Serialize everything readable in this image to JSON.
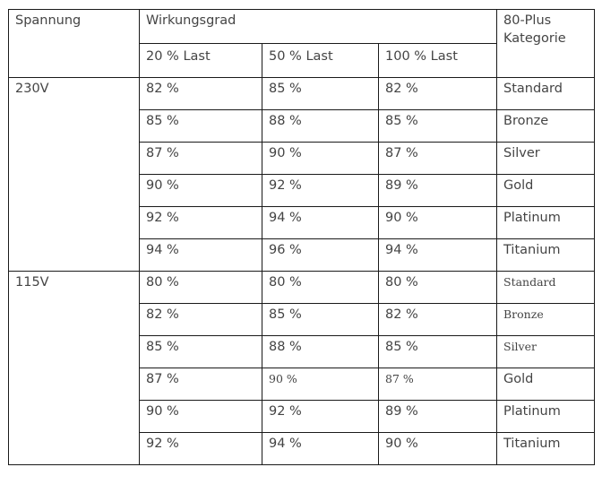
{
  "header": {
    "voltage_label": "Spannung",
    "efficiency_label": "Wirkungsgrad",
    "category_label": "80-Plus Kategorie",
    "loads": [
      "20 % Last",
      "50 % Last",
      "100 % Last"
    ]
  },
  "groups": [
    {
      "voltage": "230V",
      "rows": [
        {
          "l20": "82 %",
          "l50": "85 %",
          "l100": "82 %",
          "category": "Standard"
        },
        {
          "l20": "85 %",
          "l50": "88 %",
          "l100": "85 %",
          "category": "Bronze"
        },
        {
          "l20": "87 %",
          "l50": "90 %",
          "l100": "87 %",
          "category": "Silver"
        },
        {
          "l20": "90 %",
          "l50": "92 %",
          "l100": "89 %",
          "category": "Gold"
        },
        {
          "l20": "92 %",
          "l50": "94 %",
          "l100": "90 %",
          "category": "Platinum"
        },
        {
          "l20": "94 %",
          "l50": "96 %",
          "l100": "94 %",
          "category": "Titanium"
        }
      ]
    },
    {
      "voltage": "115V",
      "rows": [
        {
          "l20": "80 %",
          "l50": "80 %",
          "l100": "80 %",
          "category": "Standard"
        },
        {
          "l20": "82 %",
          "l50": "85 %",
          "l100": "82 %",
          "category": "Bronze"
        },
        {
          "l20": "85 %",
          "l50": "88 %",
          "l100": "85 %",
          "category": "Silver"
        },
        {
          "l20": "87 %",
          "l50": "90 %",
          "l100": "87 %",
          "category": "Gold"
        },
        {
          "l20": "90 %",
          "l50": "92 %",
          "l100": "89 %",
          "category": "Platinum"
        },
        {
          "l20": "92 %",
          "l50": "94 %",
          "l100": "90 %",
          "category": "Titanium"
        }
      ]
    }
  ]
}
